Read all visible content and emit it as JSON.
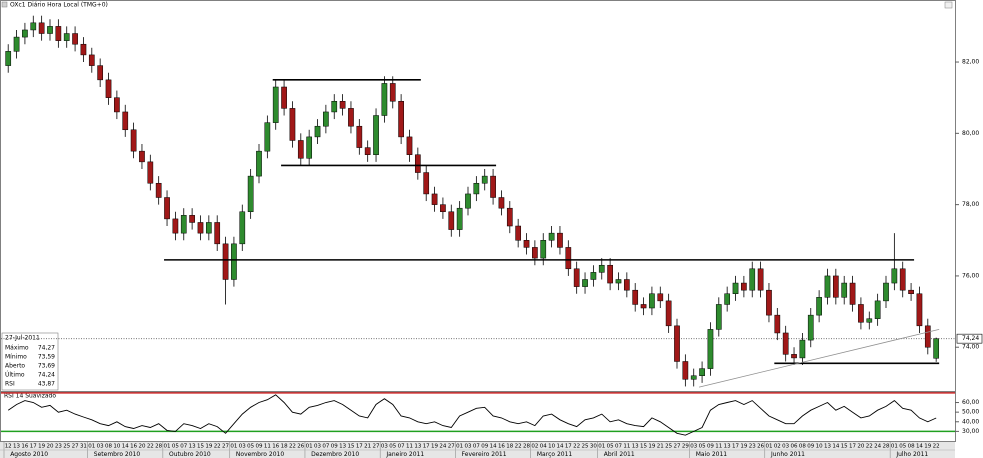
{
  "chart_data": {
    "type": "candlestick",
    "title": "OXc1 Diário Hora Local (TMG+0)",
    "ylim": [
      72.8,
      83.6
    ],
    "yticks": [
      {
        "value": 82,
        "label": "82,00"
      },
      {
        "value": 80,
        "label": "80,00"
      },
      {
        "value": 78,
        "label": "78,00"
      },
      {
        "value": 76,
        "label": "76,00"
      },
      {
        "value": 74,
        "label": "74,00"
      }
    ],
    "colors": {
      "up": "#2e8b2e",
      "down": "#a01818"
    },
    "open": [
      81.9,
      82.3,
      82.7,
      82.9,
      83.1,
      82.8,
      83.0,
      82.6,
      82.8,
      82.5,
      82.2,
      81.9,
      81.5,
      81.0,
      80.6,
      80.1,
      79.5,
      79.2,
      78.6,
      78.2,
      77.6,
      77.2,
      77.7,
      77.5,
      77.2,
      77.5,
      76.9,
      75.9,
      76.9,
      77.8,
      78.8,
      79.5,
      80.3,
      81.3,
      80.7,
      79.8,
      79.3,
      79.9,
      80.2,
      80.6,
      80.9,
      80.7,
      80.2,
      79.6,
      79.4,
      80.5,
      81.4,
      80.9,
      79.9,
      79.4,
      78.9,
      78.3,
      78.0,
      77.8,
      77.3,
      77.9,
      78.3,
      78.6,
      78.8,
      78.2,
      77.9,
      77.4,
      77.0,
      76.8,
      76.5,
      77.0,
      77.2,
      76.8,
      76.2,
      75.7,
      75.9,
      76.1,
      76.3,
      75.8,
      75.9,
      75.6,
      75.2,
      75.1,
      75.5,
      75.3,
      74.6,
      73.6,
      73.1,
      73.2,
      73.4,
      74.5,
      75.2,
      75.5,
      75.8,
      75.6,
      76.2,
      75.6,
      74.9,
      74.4,
      73.8,
      73.7,
      74.2,
      74.9,
      75.4,
      76.0,
      75.4,
      75.8,
      75.2,
      74.7,
      74.8,
      75.3,
      75.8,
      76.2,
      75.6,
      75.5,
      74.6,
      73.69
    ],
    "high": [
      82.5,
      82.9,
      83.1,
      83.3,
      83.3,
      83.2,
      83.2,
      83.0,
      83.0,
      82.7,
      82.4,
      82.1,
      81.7,
      81.2,
      80.8,
      80.3,
      79.7,
      79.4,
      78.8,
      78.4,
      77.8,
      77.9,
      77.9,
      77.7,
      77.7,
      77.7,
      77.1,
      77.1,
      78.0,
      79.0,
      79.7,
      80.5,
      81.5,
      81.5,
      80.9,
      80.0,
      80.1,
      80.4,
      80.8,
      81.1,
      81.1,
      80.9,
      80.4,
      79.8,
      80.7,
      81.6,
      81.6,
      81.1,
      80.1,
      79.6,
      79.1,
      78.5,
      78.2,
      78.0,
      78.1,
      78.5,
      78.8,
      79.0,
      79.0,
      78.4,
      78.1,
      77.6,
      77.2,
      77.0,
      77.2,
      77.4,
      77.4,
      77.0,
      76.4,
      76.1,
      76.3,
      76.5,
      76.5,
      76.1,
      76.1,
      75.8,
      75.4,
      75.7,
      75.7,
      75.5,
      74.8,
      73.8,
      73.4,
      73.6,
      74.7,
      75.4,
      75.7,
      76.0,
      76.0,
      76.4,
      76.4,
      75.8,
      75.1,
      74.6,
      74.0,
      74.4,
      75.1,
      75.6,
      76.2,
      76.2,
      76.0,
      76.0,
      75.4,
      75.0,
      75.5,
      76.0,
      77.2,
      76.4,
      75.8,
      75.7,
      74.8,
      74.27
    ],
    "low": [
      81.7,
      82.1,
      82.5,
      82.7,
      82.6,
      82.6,
      82.4,
      82.4,
      82.3,
      82.0,
      81.7,
      81.3,
      80.8,
      80.4,
      79.9,
      79.3,
      79.0,
      78.4,
      78.0,
      77.4,
      77.0,
      77.0,
      77.3,
      77.0,
      77.0,
      76.7,
      75.2,
      75.7,
      76.7,
      77.6,
      78.6,
      79.3,
      80.1,
      80.5,
      79.6,
      79.1,
      79.1,
      79.7,
      80.0,
      80.4,
      80.5,
      80.0,
      79.4,
      79.2,
      79.2,
      80.3,
      80.7,
      79.7,
      79.2,
      78.7,
      78.1,
      77.8,
      77.6,
      77.1,
      77.1,
      77.7,
      78.1,
      78.4,
      78.0,
      77.7,
      77.2,
      76.8,
      76.6,
      76.3,
      76.3,
      76.8,
      76.6,
      76.0,
      75.5,
      75.5,
      75.7,
      75.9,
      75.6,
      75.6,
      75.4,
      75.0,
      74.9,
      74.9,
      75.1,
      74.4,
      73.4,
      72.9,
      72.9,
      73.0,
      73.2,
      74.3,
      75.0,
      75.3,
      75.4,
      75.4,
      75.4,
      74.7,
      74.2,
      73.6,
      73.5,
      73.5,
      74.0,
      74.7,
      75.2,
      75.2,
      75.2,
      75.0,
      74.5,
      74.5,
      74.6,
      75.1,
      75.6,
      75.4,
      75.3,
      74.4,
      73.8,
      73.59
    ],
    "close": [
      82.3,
      82.7,
      82.9,
      83.1,
      82.8,
      83.0,
      82.6,
      82.8,
      82.5,
      82.2,
      81.9,
      81.5,
      81.0,
      80.6,
      80.1,
      79.5,
      79.2,
      78.6,
      78.2,
      77.6,
      77.2,
      77.7,
      77.5,
      77.2,
      77.5,
      76.9,
      75.9,
      76.9,
      77.8,
      78.8,
      79.5,
      80.3,
      81.3,
      80.7,
      79.8,
      79.3,
      79.9,
      80.2,
      80.6,
      80.9,
      80.7,
      80.2,
      79.6,
      79.4,
      80.5,
      81.4,
      80.9,
      79.9,
      79.4,
      78.9,
      78.3,
      78.0,
      77.8,
      77.3,
      77.9,
      78.3,
      78.6,
      78.8,
      78.2,
      77.9,
      77.4,
      77.0,
      76.8,
      76.5,
      77.0,
      77.2,
      76.8,
      76.2,
      75.7,
      75.9,
      76.1,
      76.3,
      75.8,
      75.9,
      75.6,
      75.2,
      75.1,
      75.5,
      75.3,
      74.6,
      73.6,
      73.1,
      73.2,
      73.4,
      74.5,
      75.2,
      75.5,
      75.8,
      75.6,
      76.2,
      75.6,
      74.9,
      74.4,
      73.8,
      73.7,
      74.2,
      74.9,
      75.4,
      76.0,
      75.4,
      75.8,
      75.2,
      74.7,
      74.8,
      75.3,
      75.8,
      76.2,
      75.6,
      75.5,
      74.6,
      74.0,
      74.24
    ],
    "last_price": {
      "value": 74.24,
      "label": "74,24"
    },
    "drawings": [
      {
        "from": 32,
        "to": 49,
        "y": [
          81.5,
          81.5
        ],
        "color": "#000000"
      },
      {
        "from": 33,
        "to": 58,
        "y": [
          79.1,
          79.1
        ],
        "color": "#000000"
      },
      {
        "from": 19,
        "to": 108,
        "y": [
          76.45,
          76.45
        ],
        "color": "#000000"
      },
      {
        "from": 92,
        "to": 111,
        "y": [
          73.55,
          73.55
        ],
        "color": "#000000"
      },
      {
        "from": 83,
        "to": 111,
        "y": [
          72.88,
          74.5
        ],
        "color": "#909090"
      }
    ],
    "months": [
      {
        "label": "Agosto 2010",
        "days": [
          "12",
          "13",
          "16",
          "17",
          "19",
          "20",
          "23",
          "25",
          "27",
          "31"
        ]
      },
      {
        "label": "Setembro 2010",
        "days": [
          "01",
          "03",
          "08",
          "10",
          "14",
          "16",
          "20",
          "22",
          "28"
        ]
      },
      {
        "label": "Outubro 2010",
        "days": [
          "01",
          "05",
          "07",
          "13",
          "15",
          "19",
          "22",
          "27"
        ]
      },
      {
        "label": "Novembro 2010",
        "days": [
          "01",
          "03",
          "05",
          "09",
          "11",
          "16",
          "18",
          "22",
          "26"
        ]
      },
      {
        "label": "Dezembro 2010",
        "days": [
          "01",
          "03",
          "07",
          "09",
          "13",
          "15",
          "17",
          "21",
          "27"
        ]
      },
      {
        "label": "Janeiro 2011",
        "days": [
          "03",
          "05",
          "07",
          "11",
          "13",
          "17",
          "19",
          "24",
          "27"
        ]
      },
      {
        "label": "Fevereiro 2011",
        "days": [
          "01",
          "03",
          "07",
          "09",
          "14",
          "16",
          "18",
          "22",
          "28"
        ]
      },
      {
        "label": "Março 2011",
        "days": [
          "02",
          "04",
          "10",
          "14",
          "17",
          "22",
          "25",
          "30"
        ]
      },
      {
        "label": "Abril 2011",
        "days": [
          "01",
          "05",
          "07",
          "11",
          "13",
          "15",
          "19",
          "21",
          "25",
          "27",
          "29"
        ]
      },
      {
        "label": "Maio 2011",
        "days": [
          "03",
          "05",
          "09",
          "11",
          "13",
          "17",
          "19",
          "23",
          "26"
        ]
      },
      {
        "label": "Junho 2011",
        "days": [
          "01",
          "02",
          "03",
          "06",
          "08",
          "09",
          "10",
          "13",
          "14",
          "15",
          "17",
          "20",
          "22",
          "24",
          "28"
        ]
      },
      {
        "label": "Julho 2011",
        "days": [
          "01",
          "05",
          "08",
          "14",
          "19",
          "22"
        ]
      }
    ],
    "info": {
      "date": "27-Jul-2011",
      "rows": [
        {
          "label": "Máximo",
          "value": "74,27"
        },
        {
          "label": "Mínimo",
          "value": "73,59"
        },
        {
          "label": "Aberto",
          "value": "73,69"
        },
        {
          "label": "Último",
          "value": "74,24"
        },
        {
          "label": "RSI",
          "value": "43,87"
        }
      ]
    },
    "rsi": {
      "title": "RSI 14 Suavizado",
      "color": "#000000",
      "ylim": [
        20,
        72
      ],
      "yticks": [
        {
          "value": 60,
          "label": "60,00"
        },
        {
          "value": 50,
          "label": "50,00"
        },
        {
          "value": 40,
          "label": "40,00"
        },
        {
          "value": 30,
          "label": "30,00"
        }
      ],
      "levels": [
        {
          "value": 70,
          "color": "#d02020"
        },
        {
          "value": 30,
          "color": "#20a020"
        }
      ],
      "values": [
        52,
        58,
        62,
        60,
        55,
        57,
        50,
        52,
        48,
        45,
        42,
        38,
        36,
        40,
        35,
        33,
        36,
        34,
        38,
        31,
        30,
        38,
        36,
        33,
        38,
        35,
        28,
        38,
        48,
        55,
        60,
        63,
        68,
        60,
        50,
        48,
        55,
        57,
        60,
        62,
        58,
        52,
        46,
        44,
        58,
        64,
        58,
        46,
        44,
        40,
        38,
        40,
        36,
        34,
        46,
        50,
        54,
        55,
        46,
        44,
        40,
        38,
        40,
        36,
        46,
        48,
        42,
        38,
        35,
        42,
        44,
        48,
        40,
        42,
        38,
        36,
        35,
        44,
        40,
        34,
        28,
        26,
        30,
        34,
        52,
        58,
        60,
        62,
        58,
        62,
        54,
        46,
        42,
        38,
        38,
        46,
        52,
        56,
        60,
        52,
        56,
        50,
        44,
        46,
        52,
        56,
        62,
        54,
        52,
        44,
        40,
        43.87
      ]
    }
  }
}
